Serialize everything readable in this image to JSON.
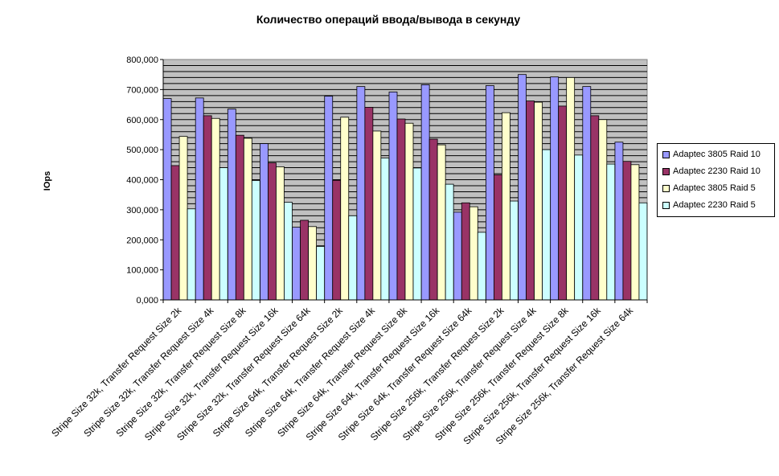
{
  "chart_data": {
    "type": "bar",
    "title": "Количество операций ввода/вывода в секунду",
    "ylabel": "IOps",
    "xlabel": "",
    "ylim": [
      0,
      800000
    ],
    "yticks": [
      "0,000",
      "100,000",
      "200,000",
      "300,000",
      "400,000",
      "500,000",
      "600,000",
      "700,000",
      "800,000"
    ],
    "grid": true,
    "legend_position": "right",
    "categories": [
      "Stripe Size 32k, Transfer Request Size 2k",
      "Stripe Size 32k, Transfer Request Size 4k",
      "Stripe Size 32k, Transfer Request Size 8k",
      "Stripe Size 32k, Transfer Request Size 16k",
      "Stripe Size 32k, Transfer Request Size 64k",
      "Stripe Size 64k, Transfer Request Size 2k",
      "Stripe Size 64k, Transfer Request Size 4k",
      "Stripe Size 64k, Transfer Request Size 8k",
      "Stripe Size 64k, Transfer Request Size 16k",
      "Stripe Size 64k, Transfer Request Size 64k",
      "Stripe Size 256k, Transfer Request Size 2k",
      "Stripe Size 256k, Transfer Request Size 4k",
      "Stripe Size 256k, Transfer Request Size 8k",
      "Stripe Size 256k, Transfer Request Size 16k",
      "Stripe Size 256k, Transfer Request Size 64k"
    ],
    "series": [
      {
        "name": "Adaptec 3805 Raid 10",
        "color": "#9999ff",
        "values": [
          670000,
          672000,
          635000,
          520000,
          242000,
          678000,
          710000,
          692000,
          716000,
          292000,
          713000,
          750000,
          742000,
          710000,
          525000
        ]
      },
      {
        "name": "Adaptec 2230 Raid 10",
        "color": "#993366",
        "values": [
          447000,
          613000,
          548000,
          456000,
          265000,
          398000,
          641000,
          602000,
          535000,
          323000,
          416000,
          662000,
          645000,
          613000,
          461000
        ]
      },
      {
        "name": "Adaptec 3805 Raid 5",
        "color": "#ffffcc",
        "values": [
          544000,
          604000,
          538000,
          443000,
          244000,
          608000,
          562000,
          588000,
          516000,
          310000,
          623000,
          658000,
          740000,
          600000,
          450000
        ]
      },
      {
        "name": "Adaptec 2230 Raid 5",
        "color": "#ccffff",
        "values": [
          303000,
          440000,
          397000,
          325000,
          178000,
          280000,
          472000,
          439000,
          385000,
          225000,
          329000,
          500000,
          482000,
          452000,
          323000
        ]
      }
    ]
  }
}
